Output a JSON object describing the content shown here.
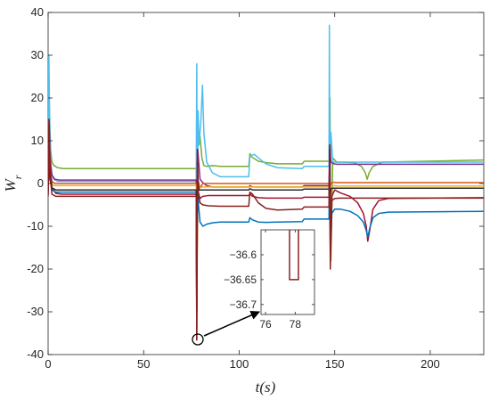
{
  "chart_data": [
    {
      "type": "line",
      "xlabel": "t(s)",
      "ylabel": "W_r",
      "xlim": [
        0,
        228
      ],
      "ylim": [
        -40,
        40
      ],
      "xticks": [
        0,
        50,
        100,
        150,
        200
      ],
      "yticks": [
        40,
        30,
        20,
        10,
        0,
        -10,
        -20,
        -30,
        -40
      ],
      "xtick_labels": [
        "0",
        "50",
        "100",
        "150",
        "200"
      ],
      "ytick_labels": [
        "40",
        "30",
        "20",
        "10",
        "0",
        "-10",
        "-20",
        "-30",
        "-40"
      ],
      "grid": false,
      "series": [
        {
          "color": "#77ac30",
          "x": [
            0,
            0.4,
            0.8,
            1.3,
            2,
            3,
            5,
            8,
            77.5,
            77.8,
            78.3,
            79.5,
            80.5,
            81.5,
            83,
            86,
            90,
            105,
            105.6,
            106.5,
            108,
            110,
            114,
            120,
            133,
            134,
            135,
            147,
            147.5,
            148,
            149,
            151,
            154,
            160,
            164,
            166,
            167,
            168,
            170,
            175,
            228
          ],
          "y": [
            3.5,
            21,
            15,
            8,
            5,
            4.2,
            3.7,
            3.5,
            3.5,
            -34,
            13,
            11,
            6,
            4.2,
            4,
            4.2,
            4,
            4,
            7,
            6.2,
            5.8,
            5.2,
            4.9,
            4.6,
            4.6,
            5.2,
            5.2,
            5.2,
            20,
            -18,
            6,
            5,
            5,
            4.9,
            4,
            2.5,
            1,
            2.5,
            4,
            5,
            5.5
          ]
        },
        {
          "color": "#4dbeee",
          "x": [
            0,
            0.4,
            0.8,
            1.3,
            2,
            3,
            5,
            77.5,
            77.8,
            78.1,
            78.5,
            79,
            80,
            80.8,
            81.5,
            83,
            86,
            90,
            105,
            105.6,
            106.5,
            108,
            110,
            114,
            120,
            133,
            134,
            135,
            147,
            147.2,
            147.5,
            148,
            149,
            150,
            152,
            155,
            228
          ],
          "y": [
            0.5,
            30,
            15,
            5,
            2,
            1,
            0.5,
            0.5,
            28,
            -8,
            17,
            9,
            15,
            23,
            12,
            5,
            2.5,
            1.6,
            1.6,
            6.5,
            6.6,
            6.8,
            6,
            4.6,
            3.7,
            3.5,
            4,
            4,
            4,
            37,
            -8,
            12,
            5,
            5,
            5,
            5,
            5
          ]
        },
        {
          "color": "#7e2f8e",
          "x": [
            0,
            0.5,
            1,
            2,
            3.5,
            6,
            77.5,
            77.8,
            78.3,
            79.5,
            81,
            83,
            86,
            90,
            105,
            105.6,
            107,
            110,
            114,
            120,
            133,
            134,
            147,
            147.4,
            148,
            149.5,
            151,
            155,
            160,
            228
          ],
          "y": [
            0.5,
            14,
            6,
            2,
            1,
            0.8,
            0.8,
            -22,
            8,
            1,
            0.2,
            -0.5,
            -0.8,
            -0.8,
            -0.8,
            -0.5,
            -0.8,
            -0.8,
            -0.8,
            -0.8,
            -0.8,
            -0.5,
            -0.5,
            9,
            5,
            4.6,
            4.5,
            4.5,
            4.5,
            4.5
          ]
        },
        {
          "color": "#d95319",
          "x": [
            0,
            0.5,
            1,
            2,
            3.5,
            77.5,
            77.8,
            78.3,
            79.5,
            81,
            147,
            147.4,
            148,
            149,
            151,
            228
          ],
          "y": [
            0,
            13,
            3,
            0.5,
            0,
            0,
            -30,
            1,
            -1,
            0,
            0,
            -6,
            0,
            0.3,
            0.2,
            0.2
          ]
        },
        {
          "color": "#edb120",
          "x": [
            0,
            0.5,
            1,
            2,
            3.5,
            77.5,
            77.8,
            78.3,
            79.5,
            81,
            147,
            147.4,
            148,
            149,
            151,
            228
          ],
          "y": [
            -0.5,
            11,
            2,
            -0.3,
            -0.5,
            -0.5,
            -28,
            0.5,
            -1,
            -0.8,
            -0.8,
            -5,
            -0.5,
            -0.5,
            -0.6,
            -0.6
          ]
        },
        {
          "color": "#a2142f",
          "x": [
            0,
            0.5,
            1,
            2,
            4,
            7,
            77.5,
            77.8,
            78.1,
            78.6,
            79.5,
            81,
            84,
            90,
            105,
            105.6,
            107,
            110,
            114,
            120,
            133,
            134,
            147,
            147.3,
            147.7,
            148.5,
            150,
            153,
            158,
            162,
            165,
            166.5,
            167.3,
            168.3,
            170,
            173,
            178,
            228
          ],
          "y": [
            -2.5,
            15,
            4,
            -1,
            -2.3,
            -2.5,
            -2.5,
            -36.6,
            8,
            -2,
            -3.5,
            -3,
            -2.8,
            -2.8,
            -2.8,
            -2.4,
            -3,
            -3.3,
            -3.4,
            -3.4,
            -3.4,
            -3.2,
            -3.2,
            8,
            -16,
            -3,
            -1.5,
            -2.2,
            -3,
            -4.5,
            -7,
            -10,
            -13.5,
            -11,
            -6,
            -4,
            -3.5,
            -3.3
          ]
        },
        {
          "color": "#0072bd",
          "x": [
            0,
            0.5,
            1,
            2,
            4,
            7,
            77.5,
            77.8,
            78.2,
            78.7,
            79.5,
            81,
            83,
            86,
            90,
            105,
            105.6,
            107,
            110,
            114,
            120,
            133,
            134,
            147,
            147.3,
            147.7,
            148.5,
            150,
            153,
            158,
            162,
            165,
            166.5,
            167.3,
            168.3,
            170,
            173,
            178,
            228
          ],
          "y": [
            -2,
            5,
            1,
            -1.5,
            -2,
            -2,
            -2,
            -20,
            -2,
            -5,
            -9,
            -10,
            -9.5,
            -9.2,
            -9,
            -9,
            -8,
            -8.5,
            -9,
            -9.1,
            -9,
            -8.9,
            -8.3,
            -8.3,
            4,
            -17,
            -7,
            -6,
            -6,
            -6.5,
            -7.5,
            -9,
            -11,
            -12.5,
            -10.5,
            -8,
            -7,
            -6.7,
            -6.5
          ]
        },
        {
          "color": "#2b2b2b",
          "x": [
            0,
            0.5,
            1,
            2,
            4,
            77.5,
            77.8,
            78.2,
            79,
            80,
            82,
            86,
            105,
            105.6,
            107,
            110,
            114,
            120,
            133,
            134,
            147,
            147.4,
            148,
            149,
            151,
            228
          ],
          "y": [
            -1.5,
            6,
            1,
            -1,
            -1.5,
            -1.5,
            -30,
            2,
            -1.5,
            -1.5,
            -1.5,
            -1.5,
            -1.5,
            -1.2,
            -1.5,
            -1.5,
            -1.5,
            -1.5,
            -1.5,
            -1.3,
            -1.3,
            -5,
            -1.2,
            -1.1,
            -1.1,
            -1.1
          ]
        },
        {
          "color": "#8b2020",
          "x": [
            0,
            0.5,
            1,
            2,
            4,
            7,
            77.5,
            77.8,
            78.1,
            78.6,
            79.5,
            81,
            84,
            90,
            105,
            105.6,
            107,
            110,
            114,
            120,
            133,
            134,
            147,
            147.4,
            147.7,
            148.5,
            150,
            153,
            160,
            170,
            228
          ],
          "y": [
            -3,
            15,
            2,
            -2.5,
            -3,
            -3,
            -3,
            -36.6,
            5,
            -2,
            -4.5,
            -5,
            -5.2,
            -5.3,
            -5.3,
            -2,
            -2.5,
            -4.5,
            -5.8,
            -6.2,
            -6,
            -5.5,
            -5.5,
            9,
            -20,
            -4,
            -3.5,
            -3.4,
            -3.4,
            -3.4,
            -3.4
          ]
        }
      ],
      "annotation": {
        "circle_at": [
          77.8,
          -36.7
        ],
        "arrow_to_inset": true
      }
    },
    {
      "type": "line",
      "role": "inset",
      "xlim": [
        75.7,
        79.3
      ],
      "ylim": [
        -36.72,
        -36.55
      ],
      "xticks": [
        76,
        78
      ],
      "yticks": [
        -36.6,
        -36.65,
        -36.7
      ],
      "xtick_labels": [
        "76",
        "78"
      ],
      "ytick_labels": [
        "−36.6",
        "−36.65",
        "−36.7"
      ],
      "series": [
        {
          "color": "#8b2020",
          "x": [
            77.62,
            77.62,
            78.22,
            78.22
          ],
          "y": [
            -36.55,
            -36.65,
            -36.65,
            -36.55
          ]
        }
      ]
    }
  ]
}
